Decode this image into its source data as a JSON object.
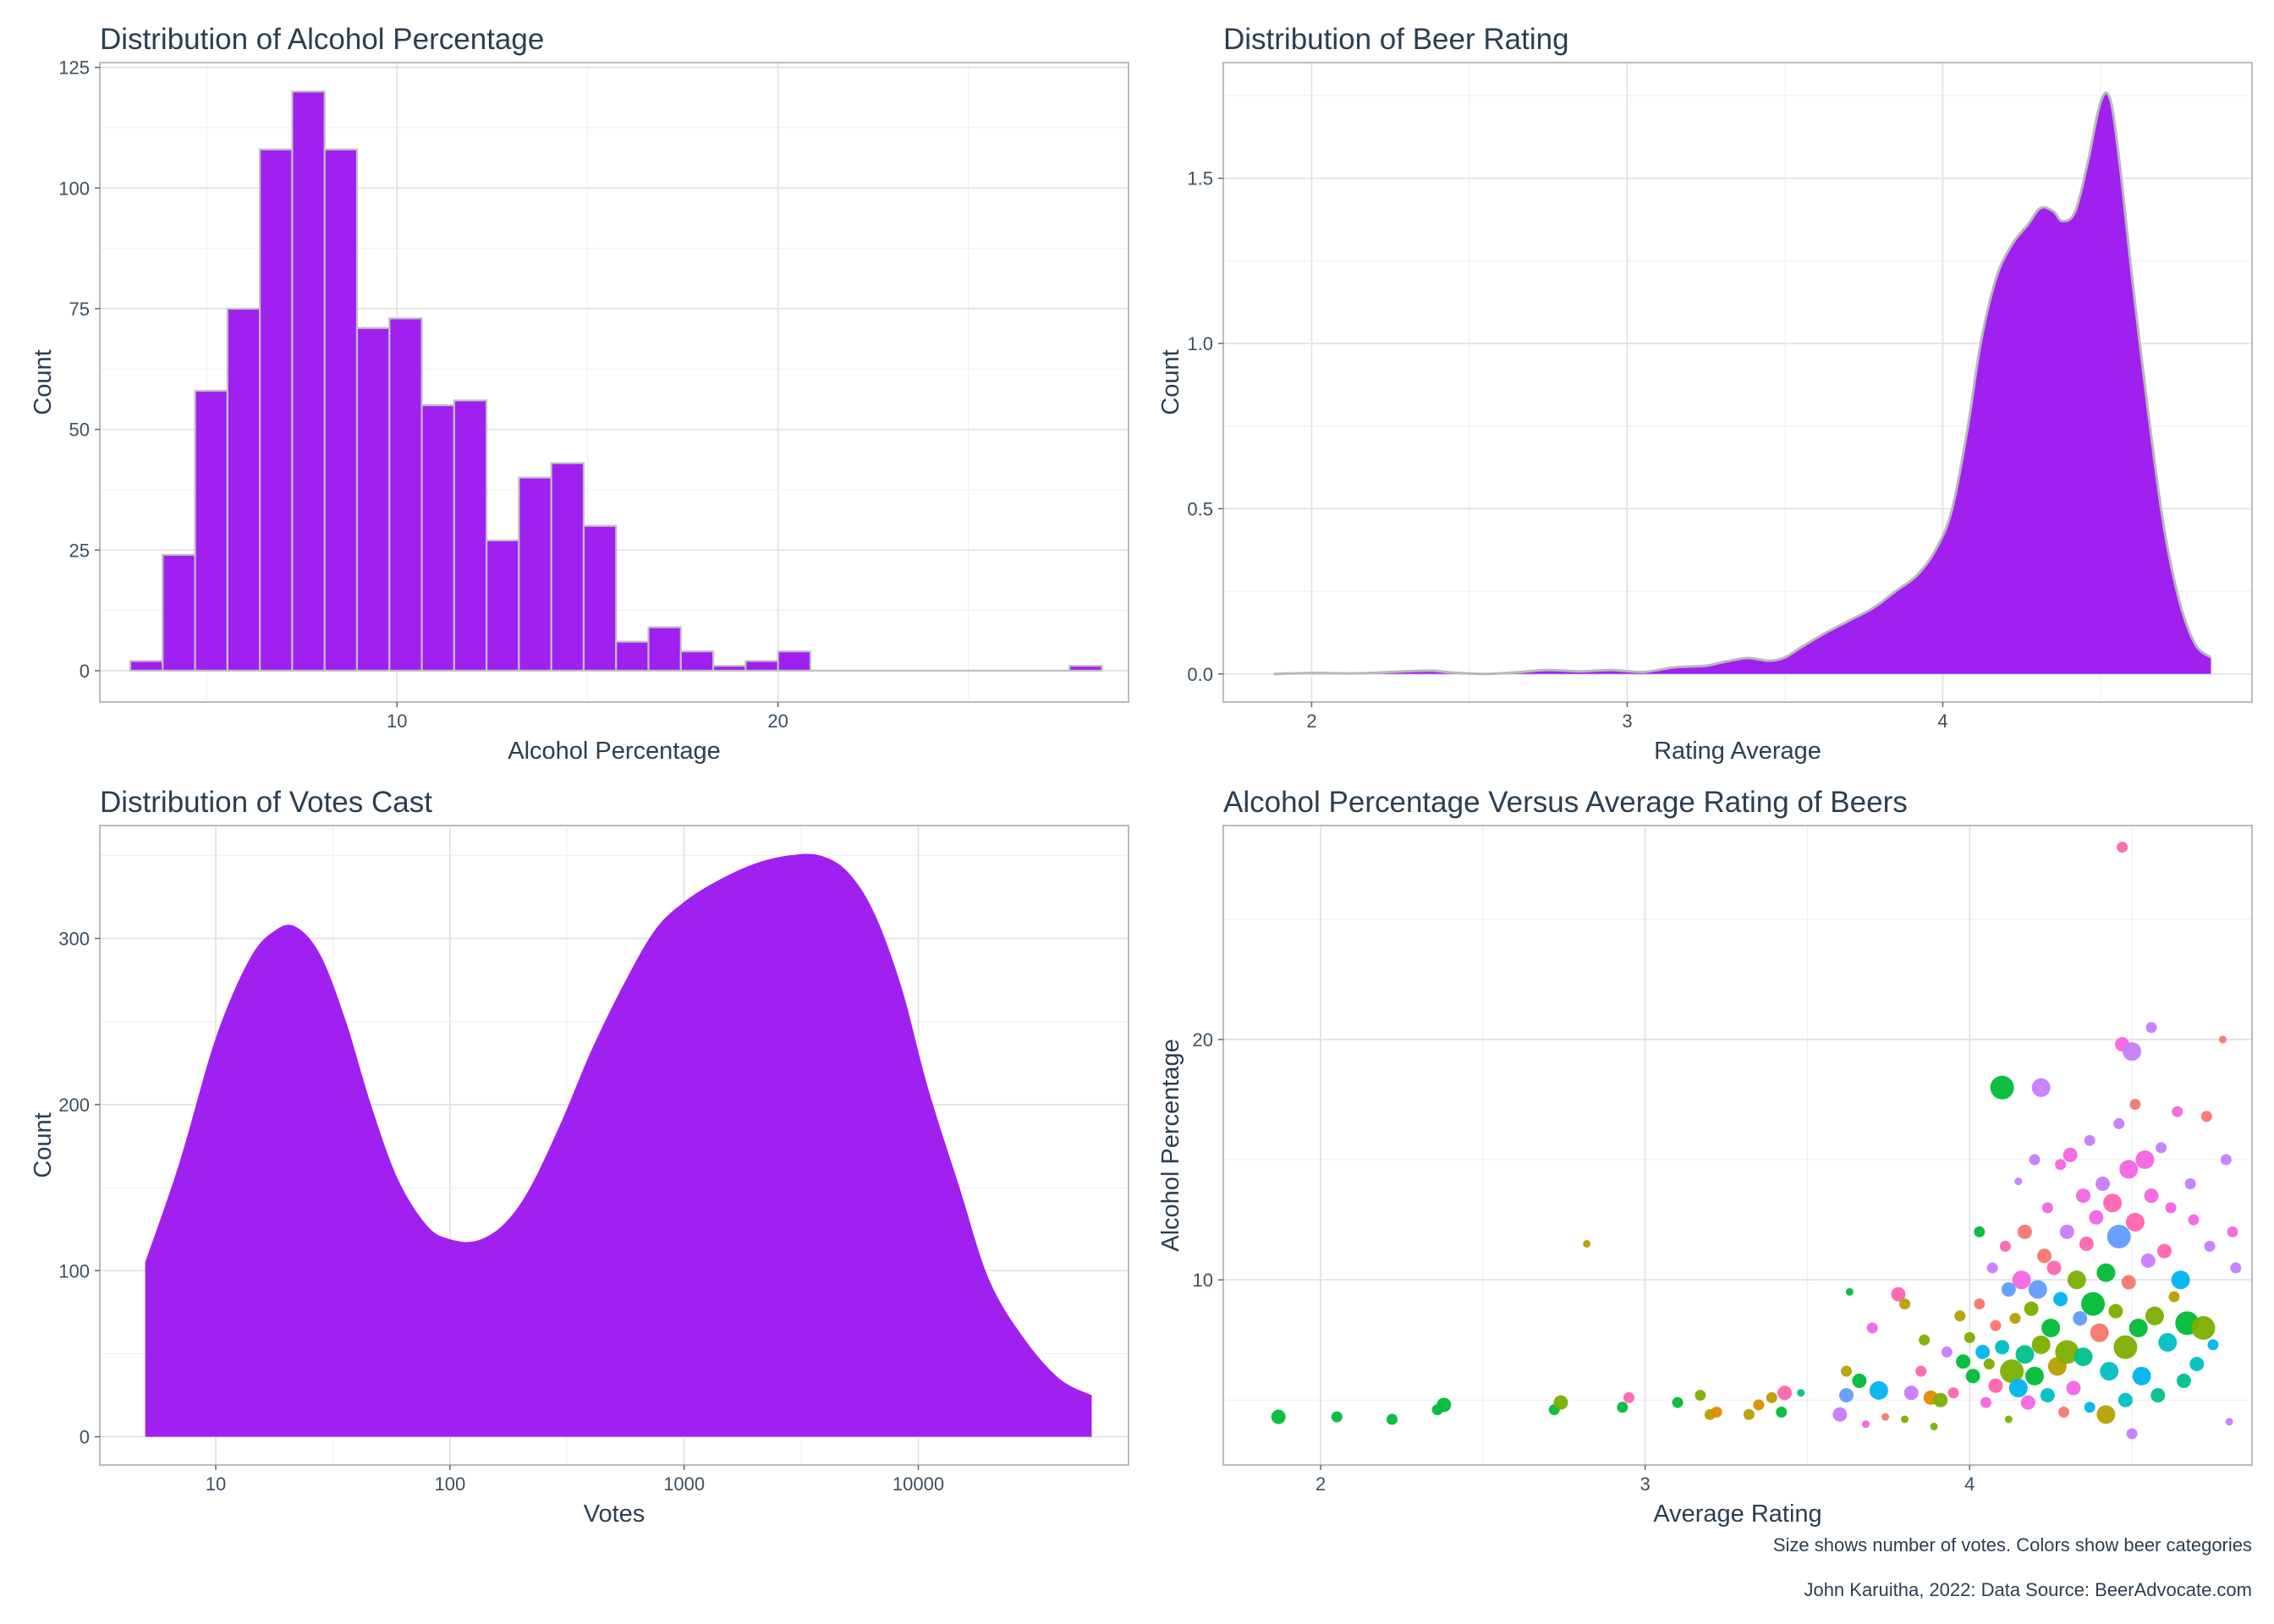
{
  "captions": {
    "line1": "Size shows number of votes. Colors show beer categories",
    "line2": "John Karuitha, 2022: Data Source: BeerAdvocate.com"
  },
  "colors": {
    "fill": "#a020f0",
    "bar_outline": "#c0c0c0",
    "categories": [
      "#f8766d",
      "#de8c00",
      "#b79f00",
      "#7cae00",
      "#00ba38",
      "#00c08b",
      "#00bfc4",
      "#00b4f0",
      "#619cff",
      "#c77cff",
      "#f564e3",
      "#ff64b0"
    ]
  },
  "chart_data": [
    {
      "id": "abv",
      "type": "bar",
      "title": "Distribution of Alcohol Percentage",
      "xlabel": "Alcohol Percentage",
      "ylabel": "Count",
      "xlim": [
        2.2,
        29.2
      ],
      "ylim": [
        -6.5,
        126
      ],
      "xticks": [
        10,
        20
      ],
      "yticks": [
        0,
        25,
        50,
        75,
        100,
        125
      ],
      "grid": true,
      "bin_width": 0.85,
      "bin_start": 3.0,
      "values": [
        2,
        24,
        58,
        75,
        108,
        120,
        108,
        71,
        73,
        55,
        56,
        27,
        40,
        43,
        30,
        6,
        9,
        4,
        1,
        2,
        4,
        0,
        0,
        0,
        0,
        0,
        0,
        0,
        0,
        1
      ]
    },
    {
      "id": "rating",
      "type": "area",
      "title": "Distribution of Beer Rating",
      "xlabel": "Rating Average",
      "ylabel": "Count",
      "xlim": [
        1.72,
        4.98
      ],
      "ylim": [
        -0.085,
        1.85
      ],
      "xticks": [
        2,
        3,
        4
      ],
      "yticks": [
        0.0,
        0.5,
        1.0,
        1.5
      ],
      "ytick_labels": [
        "0.0",
        "0.5",
        "1.0",
        "1.5"
      ],
      "grid": true,
      "x": [
        1.88,
        2.0,
        2.15,
        2.3,
        2.38,
        2.45,
        2.55,
        2.65,
        2.75,
        2.85,
        2.95,
        3.05,
        3.15,
        3.25,
        3.3,
        3.38,
        3.45,
        3.5,
        3.55,
        3.62,
        3.7,
        3.78,
        3.85,
        3.92,
        3.98,
        4.03,
        4.08,
        4.12,
        4.17,
        4.22,
        4.27,
        4.31,
        4.35,
        4.38,
        4.42,
        4.46,
        4.5,
        4.53,
        4.56,
        4.6,
        4.65,
        4.7,
        4.75,
        4.8,
        4.85
      ],
      "y": [
        0.0,
        0.003,
        0.002,
        0.008,
        0.01,
        0.004,
        0.0,
        0.005,
        0.012,
        0.008,
        0.012,
        0.006,
        0.02,
        0.025,
        0.035,
        0.048,
        0.04,
        0.05,
        0.08,
        0.12,
        0.16,
        0.2,
        0.25,
        0.3,
        0.38,
        0.5,
        0.75,
        1.0,
        1.2,
        1.3,
        1.36,
        1.41,
        1.4,
        1.37,
        1.4,
        1.55,
        1.73,
        1.74,
        1.55,
        1.2,
        0.8,
        0.45,
        0.22,
        0.09,
        0.05
      ]
    },
    {
      "id": "votes",
      "type": "area",
      "title": "Distribution of Votes Cast",
      "xlabel": "Votes",
      "ylabel": "Count",
      "xscale": "log10",
      "xlim": [
        3.2,
        79000
      ],
      "ylim": [
        -17,
        368
      ],
      "xticks": [
        10,
        100,
        1000,
        10000
      ],
      "xtick_labels": [
        "10",
        "100",
        "1000",
        "10000"
      ],
      "yticks": [
        0,
        100,
        200,
        300
      ],
      "grid": true,
      "x": [
        5,
        7,
        10,
        14,
        18,
        22,
        28,
        36,
        46,
        60,
        80,
        100,
        130,
        170,
        220,
        300,
        400,
        550,
        750,
        1000,
        1400,
        2000,
        2800,
        3800,
        5000,
        6500,
        8500,
        11000,
        15000,
        20000,
        28000,
        40000,
        55000
      ],
      "y": [
        105,
        165,
        240,
        288,
        305,
        307,
        290,
        250,
        200,
        155,
        127,
        119,
        118,
        128,
        150,
        190,
        232,
        272,
        305,
        322,
        335,
        345,
        350,
        350,
        340,
        315,
        270,
        210,
        150,
        95,
        60,
        35,
        25
      ]
    },
    {
      "id": "scatter",
      "type": "scatter",
      "title": "Alcohol Percentage Versus Average Rating of Beers",
      "xlabel": "Average Rating",
      "ylabel": "Alcohol Percentage",
      "xlim": [
        1.7,
        4.87
      ],
      "ylim": [
        2.3,
        28.9
      ],
      "xticks": [
        2,
        3,
        4
      ],
      "yticks": [
        10,
        20
      ],
      "grid": true,
      "points": [
        {
          "x": 1.87,
          "y": 4.3,
          "s": 3,
          "c": 4
        },
        {
          "x": 2.05,
          "y": 4.3,
          "s": 2,
          "c": 4
        },
        {
          "x": 2.22,
          "y": 4.2,
          "s": 2,
          "c": 4
        },
        {
          "x": 2.38,
          "y": 4.8,
          "s": 3,
          "c": 4
        },
        {
          "x": 2.36,
          "y": 4.6,
          "s": 2,
          "c": 4
        },
        {
          "x": 2.72,
          "y": 4.6,
          "s": 2,
          "c": 4
        },
        {
          "x": 2.74,
          "y": 4.9,
          "s": 3,
          "c": 3
        },
        {
          "x": 2.82,
          "y": 11.5,
          "s": 1,
          "c": 2
        },
        {
          "x": 2.93,
          "y": 4.7,
          "s": 2,
          "c": 4
        },
        {
          "x": 2.95,
          "y": 5.1,
          "s": 2,
          "c": 11
        },
        {
          "x": 3.1,
          "y": 4.9,
          "s": 2,
          "c": 4
        },
        {
          "x": 3.17,
          "y": 5.2,
          "s": 2,
          "c": 3
        },
        {
          "x": 3.2,
          "y": 4.4,
          "s": 2,
          "c": 2
        },
        {
          "x": 3.22,
          "y": 4.5,
          "s": 2,
          "c": 1
        },
        {
          "x": 3.32,
          "y": 4.4,
          "s": 2,
          "c": 2
        },
        {
          "x": 3.35,
          "y": 4.8,
          "s": 2,
          "c": 1
        },
        {
          "x": 3.39,
          "y": 5.1,
          "s": 2,
          "c": 2
        },
        {
          "x": 3.42,
          "y": 4.5,
          "s": 2,
          "c": 4
        },
        {
          "x": 3.43,
          "y": 5.3,
          "s": 3,
          "c": 11
        },
        {
          "x": 3.48,
          "y": 5.3,
          "s": 1,
          "c": 5
        },
        {
          "x": 3.6,
          "y": 4.4,
          "s": 3,
          "c": 9
        },
        {
          "x": 3.62,
          "y": 5.2,
          "s": 3,
          "c": 8
        },
        {
          "x": 3.62,
          "y": 6.2,
          "s": 2,
          "c": 2
        },
        {
          "x": 3.63,
          "y": 9.5,
          "s": 1,
          "c": 4
        },
        {
          "x": 3.66,
          "y": 5.8,
          "s": 3,
          "c": 4
        },
        {
          "x": 3.68,
          "y": 4.0,
          "s": 1,
          "c": 10
        },
        {
          "x": 3.7,
          "y": 8.0,
          "s": 2,
          "c": 10
        },
        {
          "x": 3.72,
          "y": 5.4,
          "s": 4,
          "c": 7
        },
        {
          "x": 3.74,
          "y": 4.3,
          "s": 1,
          "c": 0
        },
        {
          "x": 3.78,
          "y": 9.4,
          "s": 3,
          "c": 11
        },
        {
          "x": 3.8,
          "y": 9.0,
          "s": 2,
          "c": 2
        },
        {
          "x": 3.8,
          "y": 4.2,
          "s": 1,
          "c": 3
        },
        {
          "x": 3.82,
          "y": 5.3,
          "s": 3,
          "c": 9
        },
        {
          "x": 3.85,
          "y": 6.2,
          "s": 2,
          "c": 11
        },
        {
          "x": 3.86,
          "y": 7.5,
          "s": 2,
          "c": 3
        },
        {
          "x": 3.88,
          "y": 5.1,
          "s": 3,
          "c": 1
        },
        {
          "x": 3.89,
          "y": 3.9,
          "s": 1,
          "c": 3
        },
        {
          "x": 3.91,
          "y": 5.0,
          "s": 3,
          "c": 3
        },
        {
          "x": 3.93,
          "y": 7.0,
          "s": 2,
          "c": 9
        },
        {
          "x": 3.95,
          "y": 5.3,
          "s": 2,
          "c": 11
        },
        {
          "x": 3.97,
          "y": 8.5,
          "s": 2,
          "c": 2
        },
        {
          "x": 3.98,
          "y": 6.6,
          "s": 3,
          "c": 4
        },
        {
          "x": 4.0,
          "y": 7.6,
          "s": 2,
          "c": 3
        },
        {
          "x": 4.01,
          "y": 6.0,
          "s": 3,
          "c": 4
        },
        {
          "x": 4.03,
          "y": 9.0,
          "s": 2,
          "c": 0
        },
        {
          "x": 4.03,
          "y": 12.0,
          "s": 2,
          "c": 4
        },
        {
          "x": 4.04,
          "y": 7.0,
          "s": 3,
          "c": 7
        },
        {
          "x": 4.05,
          "y": 4.9,
          "s": 2,
          "c": 10
        },
        {
          "x": 4.06,
          "y": 6.5,
          "s": 2,
          "c": 3
        },
        {
          "x": 4.07,
          "y": 10.5,
          "s": 2,
          "c": 9
        },
        {
          "x": 4.08,
          "y": 8.1,
          "s": 2,
          "c": 0
        },
        {
          "x": 4.08,
          "y": 5.6,
          "s": 3,
          "c": 11
        },
        {
          "x": 4.1,
          "y": 18.0,
          "s": 5,
          "c": 4
        },
        {
          "x": 4.1,
          "y": 7.2,
          "s": 3,
          "c": 6
        },
        {
          "x": 4.11,
          "y": 11.4,
          "s": 2,
          "c": 11
        },
        {
          "x": 4.12,
          "y": 9.6,
          "s": 3,
          "c": 8
        },
        {
          "x": 4.12,
          "y": 4.2,
          "s": 1,
          "c": 3
        },
        {
          "x": 4.13,
          "y": 6.2,
          "s": 5,
          "c": 3
        },
        {
          "x": 4.14,
          "y": 8.4,
          "s": 2,
          "c": 2
        },
        {
          "x": 4.15,
          "y": 14.1,
          "s": 1,
          "c": 9
        },
        {
          "x": 4.15,
          "y": 5.5,
          "s": 4,
          "c": 7
        },
        {
          "x": 4.16,
          "y": 10.0,
          "s": 4,
          "c": 10
        },
        {
          "x": 4.17,
          "y": 6.9,
          "s": 4,
          "c": 5
        },
        {
          "x": 4.17,
          "y": 12.0,
          "s": 3,
          "c": 0
        },
        {
          "x": 4.18,
          "y": 4.9,
          "s": 3,
          "c": 10
        },
        {
          "x": 4.19,
          "y": 8.8,
          "s": 3,
          "c": 3
        },
        {
          "x": 4.2,
          "y": 15.0,
          "s": 2,
          "c": 9
        },
        {
          "x": 4.2,
          "y": 6.0,
          "s": 4,
          "c": 4
        },
        {
          "x": 4.21,
          "y": 9.6,
          "s": 4,
          "c": 8
        },
        {
          "x": 4.22,
          "y": 18.0,
          "s": 4,
          "c": 9
        },
        {
          "x": 4.22,
          "y": 7.3,
          "s": 4,
          "c": 3
        },
        {
          "x": 4.23,
          "y": 11.0,
          "s": 3,
          "c": 0
        },
        {
          "x": 4.24,
          "y": 13.0,
          "s": 2,
          "c": 10
        },
        {
          "x": 4.24,
          "y": 5.2,
          "s": 3,
          "c": 6
        },
        {
          "x": 4.25,
          "y": 8.0,
          "s": 4,
          "c": 4
        },
        {
          "x": 4.26,
          "y": 10.5,
          "s": 3,
          "c": 11
        },
        {
          "x": 4.27,
          "y": 6.4,
          "s": 4,
          "c": 2
        },
        {
          "x": 4.28,
          "y": 14.8,
          "s": 2,
          "c": 10
        },
        {
          "x": 4.28,
          "y": 9.2,
          "s": 3,
          "c": 7
        },
        {
          "x": 4.29,
          "y": 4.5,
          "s": 2,
          "c": 0
        },
        {
          "x": 4.3,
          "y": 7.0,
          "s": 5,
          "c": 3
        },
        {
          "x": 4.3,
          "y": 12.0,
          "s": 3,
          "c": 9
        },
        {
          "x": 4.31,
          "y": 15.2,
          "s": 3,
          "c": 10
        },
        {
          "x": 4.32,
          "y": 5.5,
          "s": 3,
          "c": 10
        },
        {
          "x": 4.33,
          "y": 10.0,
          "s": 4,
          "c": 3
        },
        {
          "x": 4.34,
          "y": 8.4,
          "s": 3,
          "c": 8
        },
        {
          "x": 4.35,
          "y": 13.5,
          "s": 3,
          "c": 10
        },
        {
          "x": 4.35,
          "y": 6.8,
          "s": 4,
          "c": 5
        },
        {
          "x": 4.36,
          "y": 11.5,
          "s": 3,
          "c": 11
        },
        {
          "x": 4.37,
          "y": 15.8,
          "s": 2,
          "c": 9
        },
        {
          "x": 4.37,
          "y": 4.7,
          "s": 2,
          "c": 7
        },
        {
          "x": 4.38,
          "y": 9.0,
          "s": 5,
          "c": 4
        },
        {
          "x": 4.39,
          "y": 12.6,
          "s": 3,
          "c": 10
        },
        {
          "x": 4.4,
          "y": 7.8,
          "s": 4,
          "c": 0
        },
        {
          "x": 4.41,
          "y": 14.0,
          "s": 3,
          "c": 9
        },
        {
          "x": 4.42,
          "y": 4.4,
          "s": 4,
          "c": 2
        },
        {
          "x": 4.42,
          "y": 10.3,
          "s": 4,
          "c": 4
        },
        {
          "x": 4.43,
          "y": 6.2,
          "s": 4,
          "c": 6
        },
        {
          "x": 4.44,
          "y": 13.2,
          "s": 4,
          "c": 11
        },
        {
          "x": 4.45,
          "y": 8.7,
          "s": 3,
          "c": 3
        },
        {
          "x": 4.46,
          "y": 16.5,
          "s": 2,
          "c": 9
        },
        {
          "x": 4.46,
          "y": 11.8,
          "s": 5,
          "c": 8
        },
        {
          "x": 4.47,
          "y": 19.8,
          "s": 3,
          "c": 10
        },
        {
          "x": 4.47,
          "y": 28.0,
          "s": 2,
          "c": 11
        },
        {
          "x": 4.48,
          "y": 5.0,
          "s": 3,
          "c": 6
        },
        {
          "x": 4.48,
          "y": 7.2,
          "s": 5,
          "c": 3
        },
        {
          "x": 4.49,
          "y": 14.6,
          "s": 4,
          "c": 10
        },
        {
          "x": 4.49,
          "y": 9.9,
          "s": 3,
          "c": 0
        },
        {
          "x": 4.5,
          "y": 19.5,
          "s": 4,
          "c": 9
        },
        {
          "x": 4.5,
          "y": 3.6,
          "s": 2,
          "c": 9
        },
        {
          "x": 4.51,
          "y": 17.3,
          "s": 2,
          "c": 0
        },
        {
          "x": 4.51,
          "y": 12.4,
          "s": 4,
          "c": 11
        },
        {
          "x": 4.52,
          "y": 8.0,
          "s": 4,
          "c": 4
        },
        {
          "x": 4.53,
          "y": 6.0,
          "s": 4,
          "c": 7
        },
        {
          "x": 4.54,
          "y": 15.0,
          "s": 4,
          "c": 10
        },
        {
          "x": 4.55,
          "y": 10.8,
          "s": 3,
          "c": 9
        },
        {
          "x": 4.56,
          "y": 20.5,
          "s": 2,
          "c": 9
        },
        {
          "x": 4.56,
          "y": 13.5,
          "s": 3,
          "c": 10
        },
        {
          "x": 4.57,
          "y": 8.5,
          "s": 4,
          "c": 3
        },
        {
          "x": 4.58,
          "y": 5.2,
          "s": 3,
          "c": 5
        },
        {
          "x": 4.59,
          "y": 15.5,
          "s": 2,
          "c": 9
        },
        {
          "x": 4.6,
          "y": 11.2,
          "s": 3,
          "c": 11
        },
        {
          "x": 4.61,
          "y": 7.4,
          "s": 4,
          "c": 6
        },
        {
          "x": 4.62,
          "y": 13.0,
          "s": 2,
          "c": 10
        },
        {
          "x": 4.63,
          "y": 9.3,
          "s": 2,
          "c": 2
        },
        {
          "x": 4.64,
          "y": 17.0,
          "s": 2,
          "c": 10
        },
        {
          "x": 4.65,
          "y": 10.0,
          "s": 4,
          "c": 7
        },
        {
          "x": 4.66,
          "y": 5.8,
          "s": 3,
          "c": 5
        },
        {
          "x": 4.67,
          "y": 8.2,
          "s": 5,
          "c": 4
        },
        {
          "x": 4.68,
          "y": 14.0,
          "s": 2,
          "c": 9
        },
        {
          "x": 4.69,
          "y": 12.5,
          "s": 2,
          "c": 10
        },
        {
          "x": 4.7,
          "y": 6.5,
          "s": 3,
          "c": 6
        },
        {
          "x": 4.72,
          "y": 8.0,
          "s": 5,
          "c": 3
        },
        {
          "x": 4.73,
          "y": 16.8,
          "s": 2,
          "c": 0
        },
        {
          "x": 4.74,
          "y": 11.4,
          "s": 2,
          "c": 9
        },
        {
          "x": 4.75,
          "y": 7.3,
          "s": 2,
          "c": 7
        },
        {
          "x": 4.78,
          "y": 20.0,
          "s": 1,
          "c": 0
        },
        {
          "x": 4.79,
          "y": 15.0,
          "s": 2,
          "c": 9
        },
        {
          "x": 4.8,
          "y": 4.1,
          "s": 1,
          "c": 9
        },
        {
          "x": 4.81,
          "y": 12.0,
          "s": 2,
          "c": 10
        },
        {
          "x": 4.82,
          "y": 10.5,
          "s": 2,
          "c": 9
        }
      ]
    }
  ]
}
